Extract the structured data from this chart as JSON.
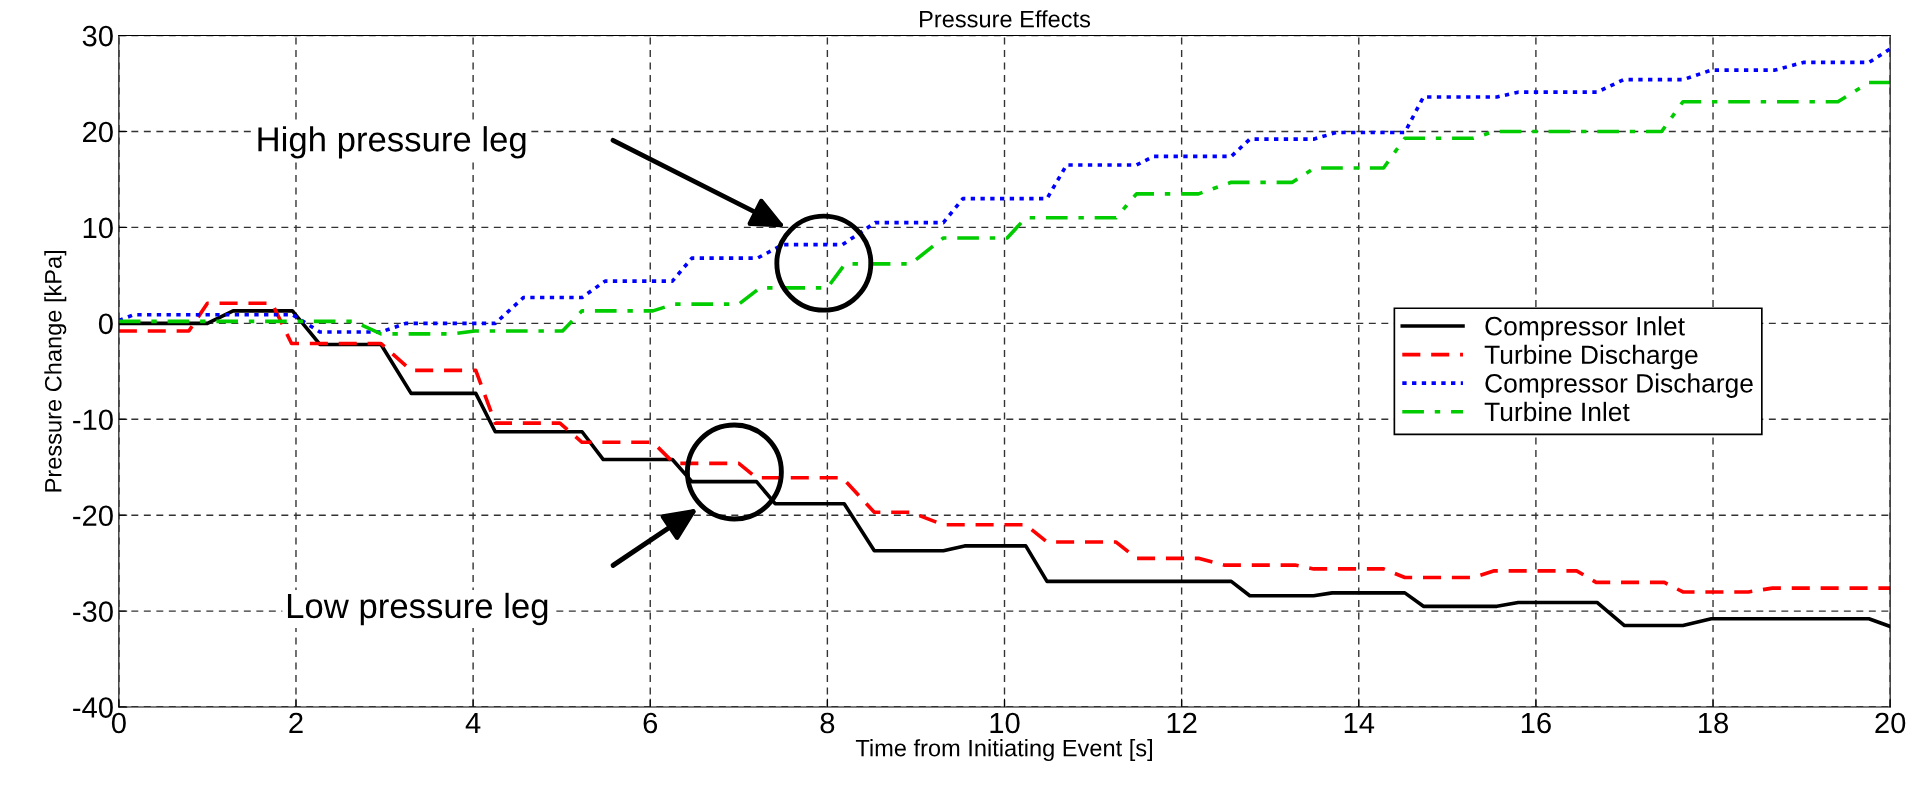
{
  "chart_data": {
    "type": "line",
    "title": "Pressure Effects",
    "xlabel": "Time from Initiating Event [s]",
    "ylabel": "Pressure Change [kPa]",
    "xlim": [
      0,
      20
    ],
    "xticks": [
      0,
      2,
      4,
      6,
      8,
      10,
      12,
      14,
      16,
      18,
      20
    ],
    "ylim": [
      -40,
      30
    ],
    "yticks": [
      -40,
      -30,
      -20,
      -10,
      0,
      10,
      20,
      30
    ],
    "grid": true,
    "legend": "right",
    "annotations": [
      "High pressure leg",
      "Low pressure leg"
    ],
    "series": [
      {
        "name": "Compressor Inlet",
        "color": "#000000",
        "line_style": "solid",
        "x": [
          0,
          1.0,
          1.29,
          1.96,
          2.27,
          2.96,
          3.3,
          4.03,
          4.25,
          5.23,
          5.47,
          6.25,
          6.47,
          7.2,
          7.41,
          8.19,
          8.53,
          9.31,
          9.55,
          10.24,
          10.48,
          12.56,
          12.77,
          13.49,
          13.7,
          14.52,
          14.73,
          15.56,
          15.8,
          16.69,
          17.0,
          17.66,
          17.98,
          19.76,
          20
        ],
        "values": [
          0,
          0,
          1.3,
          1.3,
          -2.2,
          -2.2,
          -7.3,
          -7.3,
          -11.3,
          -11.3,
          -14.2,
          -14.2,
          -16.5,
          -16.5,
          -18.8,
          -18.8,
          -23.7,
          -23.7,
          -23.2,
          -23.2,
          -26.9,
          -26.9,
          -28.4,
          -28.4,
          -28.1,
          -28.1,
          -29.5,
          -29.5,
          -29.1,
          -29.1,
          -31.5,
          -31.5,
          -30.8,
          -30.8,
          -31.6
        ]
      },
      {
        "name": "Turbine Discharge",
        "color": "#ff0000",
        "line_style": "dashed",
        "x": [
          0,
          0.79,
          1.0,
          1.73,
          1.95,
          2.96,
          3.3,
          4.03,
          4.25,
          4.98,
          5.23,
          6.03,
          6.27,
          7.0,
          7.2,
          8.17,
          8.53,
          8.94,
          9.31,
          10.24,
          10.48,
          11.26,
          11.49,
          12.19,
          12.48,
          13.28,
          13.49,
          14.28,
          14.52,
          15.29,
          15.53,
          16.46,
          16.68,
          17.45,
          17.66,
          18.4,
          18.67,
          20
        ],
        "values": [
          -0.8,
          -0.8,
          2.1,
          2.1,
          -2.1,
          -2.1,
          -4.9,
          -4.9,
          -10.4,
          -10.4,
          -12.4,
          -12.4,
          -14.6,
          -14.6,
          -16.1,
          -16.1,
          -19.7,
          -19.7,
          -21.0,
          -21.0,
          -22.8,
          -22.8,
          -24.5,
          -24.5,
          -25.2,
          -25.2,
          -25.6,
          -25.6,
          -26.5,
          -26.5,
          -25.8,
          -25.8,
          -27.0,
          -27.0,
          -28.0,
          -28.0,
          -27.6,
          -27.6
        ]
      },
      {
        "name": "Compressor Discharge",
        "color": "#0000ff",
        "line_style": "dotted",
        "x": [
          0,
          0.17,
          1.96,
          2.27,
          2.96,
          3.24,
          4.25,
          4.57,
          5.23,
          5.49,
          6.25,
          6.47,
          7.21,
          7.5,
          8.17,
          8.54,
          9.31,
          9.53,
          10.48,
          10.7,
          11.49,
          11.68,
          12.56,
          12.77,
          13.49,
          13.75,
          14.52,
          14.73,
          15.56,
          15.8,
          16.69,
          16.99,
          17.66,
          17.98,
          18.7,
          19.02,
          19.76,
          20
        ],
        "values": [
          0.3,
          0.9,
          0.9,
          -0.9,
          -0.9,
          0,
          0,
          2.7,
          2.7,
          4.4,
          4.4,
          6.8,
          6.8,
          8.2,
          8.2,
          10.5,
          10.5,
          13.0,
          13.0,
          16.5,
          16.5,
          17.4,
          17.4,
          19.2,
          19.2,
          19.9,
          19.9,
          23.6,
          23.6,
          24.1,
          24.1,
          25.4,
          25.4,
          26.4,
          26.4,
          27.2,
          27.2,
          28.6
        ]
      },
      {
        "name": "Turbine Inlet",
        "color": "#00cc00",
        "line_style": "dashdot",
        "x": [
          0,
          2.65,
          2.96,
          3.77,
          4.02,
          5.01,
          5.23,
          6.03,
          6.27,
          7.0,
          7.24,
          8.0,
          8.2,
          8.94,
          9.31,
          10.03,
          10.24,
          11.26,
          11.49,
          12.19,
          12.56,
          13.25,
          13.5,
          14.28,
          14.52,
          15.29,
          15.53,
          17.42,
          17.66,
          19.41,
          19.76,
          20
        ],
        "values": [
          0.2,
          0.2,
          -1.1,
          -1.1,
          -0.8,
          -0.8,
          1.3,
          1.3,
          2.0,
          2.0,
          3.7,
          3.7,
          6.2,
          6.2,
          8.9,
          8.9,
          11.0,
          11.0,
          13.5,
          13.5,
          14.7,
          14.7,
          16.2,
          16.2,
          19.3,
          19.3,
          20.0,
          20.0,
          23.1,
          23.1,
          25.1,
          25.1
        ]
      }
    ]
  }
}
